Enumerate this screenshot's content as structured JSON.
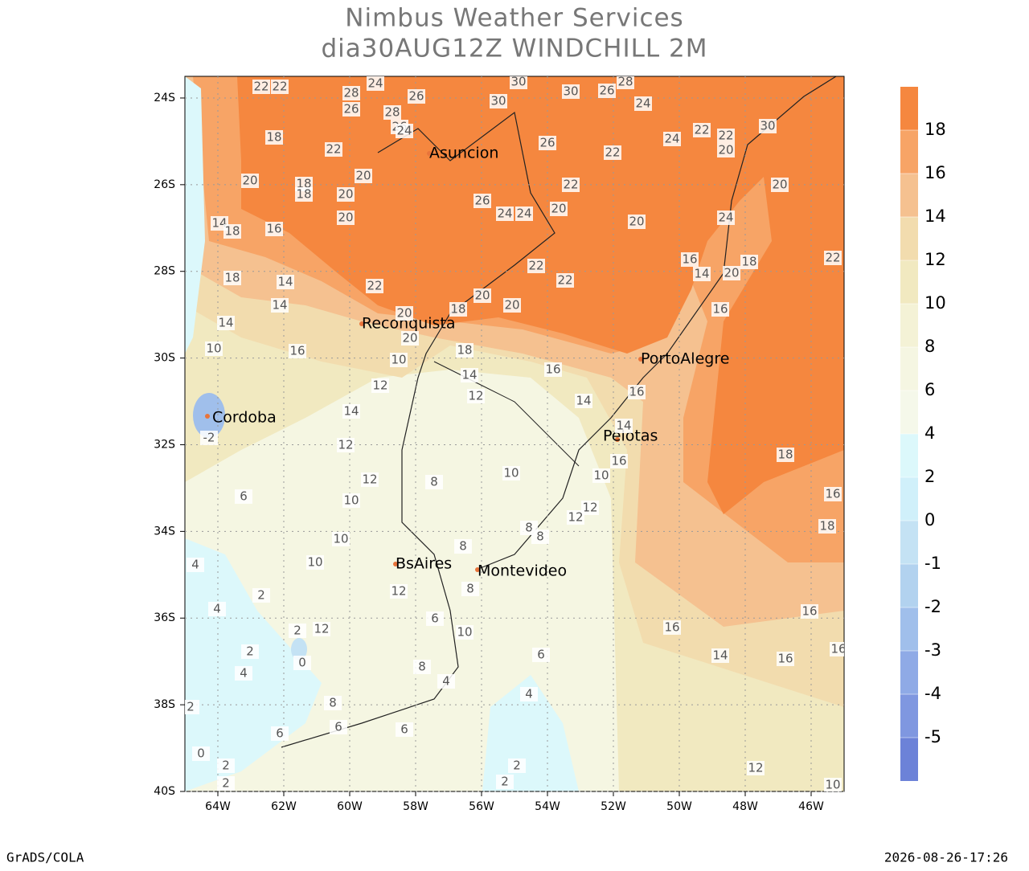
{
  "header": {
    "title": "Nimbus Weather Services",
    "subtitle": "dia30AUG12Z WINDCHILL 2M"
  },
  "map": {
    "lon_ticks": [
      {
        "value": -64,
        "label": "64W"
      },
      {
        "value": -62,
        "label": "62W"
      },
      {
        "value": -60,
        "label": "60W"
      },
      {
        "value": -58,
        "label": "58W"
      },
      {
        "value": -56,
        "label": "56W"
      },
      {
        "value": -54,
        "label": "54W"
      },
      {
        "value": -52,
        "label": "52W"
      },
      {
        "value": -50,
        "label": "50W"
      },
      {
        "value": -48,
        "label": "48W"
      },
      {
        "value": -46,
        "label": "46W"
      }
    ],
    "lat_ticks": [
      {
        "value": -24,
        "label": "24S"
      },
      {
        "value": -26,
        "label": "26S"
      },
      {
        "value": -28,
        "label": "28S"
      },
      {
        "value": -30,
        "label": "30S"
      },
      {
        "value": -32,
        "label": "32S"
      },
      {
        "value": -34,
        "label": "34S"
      },
      {
        "value": -36,
        "label": "36S"
      },
      {
        "value": -38,
        "label": "38S"
      },
      {
        "value": -40,
        "label": "40S"
      }
    ],
    "cities": [
      "Asuncion",
      "Reconquista",
      "PortoAlegre",
      "Cordoba",
      "Pelotas",
      "BsAires",
      "Montevideo"
    ],
    "contour_labels": [
      22,
      22,
      28,
      26,
      24,
      26,
      28,
      26,
      24,
      30,
      30,
      30,
      26,
      28,
      24,
      18,
      22,
      20,
      18,
      18,
      20,
      20,
      20,
      26,
      24,
      24,
      26,
      22,
      24,
      22,
      22,
      20,
      30,
      20,
      22,
      20,
      20,
      24,
      22,
      22,
      22,
      20,
      20,
      20,
      18,
      20,
      18,
      16,
      14,
      20,
      18,
      22,
      16,
      14,
      18,
      16,
      18,
      14,
      14,
      14,
      10,
      16,
      10,
      12,
      14,
      12,
      16,
      14,
      16,
      14,
      14,
      12,
      12,
      10,
      10,
      10,
      6,
      8,
      10,
      10,
      16,
      12,
      12,
      8,
      8,
      8,
      12,
      12,
      2,
      2,
      2,
      0,
      4,
      4,
      4,
      8,
      6,
      6,
      6,
      10,
      8,
      4,
      6,
      4,
      2,
      2,
      2,
      2,
      0,
      2,
      18,
      16,
      18,
      16,
      16,
      14,
      16,
      16,
      12,
      10,
      -2,
      6,
      8
    ]
  },
  "colorbar": {
    "levels": [
      18,
      16,
      14,
      12,
      10,
      8,
      6,
      4,
      2,
      0,
      -1,
      -2,
      -3,
      -4,
      -5
    ],
    "colors": [
      "#f5873f",
      "#f7a466",
      "#f5c190",
      "#f2dcae",
      "#f1e9c0",
      "#f4f2d6",
      "#f5f6e2",
      "#f5f8ea",
      "#dcf8fb",
      "#d0f0fa",
      "#c4e2f4",
      "#b2d2ef",
      "#a0bfeb",
      "#8faae6",
      "#7f97e0",
      "#6c82d8"
    ]
  },
  "footer": {
    "left": "GrADS/COLA",
    "right": "2026-08-26-17:26"
  }
}
